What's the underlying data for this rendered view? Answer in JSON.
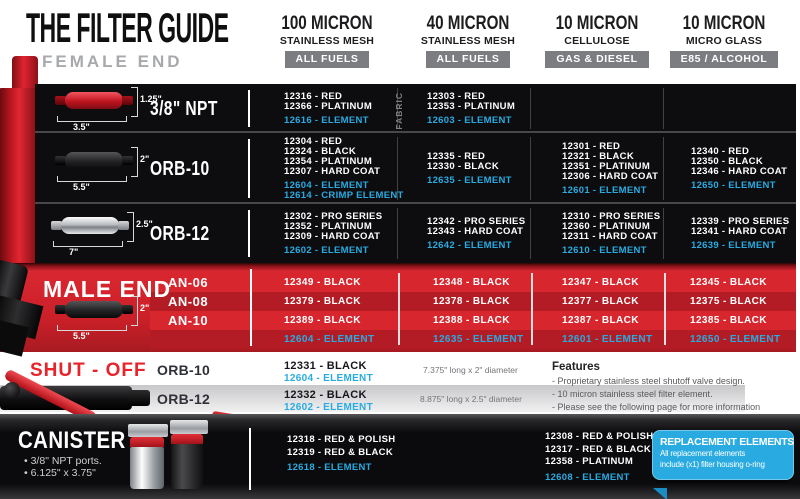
{
  "colors": {
    "element_blue": "#29ABE2",
    "brand_red": "#C8202A",
    "badge_gray": "#7B7D80"
  },
  "title": "THE FILTER GUIDE",
  "sections": {
    "female": "FEMALE END"
  },
  "columns": [
    {
      "micron": "100 MICRON",
      "media": "STAINLESS MESH",
      "fuel": "ALL FUELS"
    },
    {
      "micron": "40 MICRON",
      "media": "STAINLESS MESH",
      "fuel": "ALL FUELS"
    },
    {
      "micron": "10 MICRON",
      "media": "CELLULOSE",
      "fuel": "GAS & DIESEL"
    },
    {
      "micron": "10 MICRON",
      "media": "MICRO GLASS",
      "fuel": "E85 / ALCOHOL"
    }
  ],
  "female_rows": [
    {
      "label": "3/8\" NPT",
      "dims": {
        "h": "1.25\"",
        "w": "3.5\""
      },
      "fabric_note": "FABRIC",
      "cells": [
        {
          "parts": [
            "12316 - RED",
            "12366 - PLATINUM"
          ],
          "elements": [
            "12616 - ELEMENT"
          ]
        },
        {
          "parts": [
            "12303 - RED",
            "12353 - PLATINUM"
          ],
          "elements": [
            "12603 - ELEMENT"
          ]
        },
        {
          "parts": [],
          "elements": []
        },
        {
          "parts": [],
          "elements": []
        }
      ]
    },
    {
      "label": "ORB-10",
      "dims": {
        "h": "2\"",
        "w": "5.5\""
      },
      "cells": [
        {
          "parts": [
            "12304 - RED",
            "12324 - BLACK",
            "12354 - PLATINUM",
            "12307 - HARD COAT"
          ],
          "elements": [
            "12604 - ELEMENT",
            "12614 - CRIMP ELEMENT"
          ]
        },
        {
          "parts": [
            "12335 - RED",
            "12330 - BLACK"
          ],
          "elements": [
            "12635 - ELEMENT"
          ]
        },
        {
          "parts": [
            "12301 - RED",
            "12321 - BLACK",
            "12351 - PLATINUM",
            "12306 - HARD COAT"
          ],
          "elements": [
            "12601 - ELEMENT"
          ]
        },
        {
          "parts": [
            "12340 - RED",
            "12350 - BLACK",
            "12346 - HARD COAT"
          ],
          "elements": [
            "12650 - ELEMENT"
          ]
        }
      ]
    },
    {
      "label": "ORB-12",
      "dims": {
        "h": "2.5\"",
        "w": "7\""
      },
      "cells": [
        {
          "parts": [
            "12302 - PRO SERIES",
            "12352 - PLATINUM",
            "12309 - HARD COAT"
          ],
          "elements": [
            "12602 - ELEMENT"
          ]
        },
        {
          "parts": [
            "12342 - PRO SERIES",
            "12343 - HARD COAT"
          ],
          "elements": [
            "12642 - ELEMENT"
          ]
        },
        {
          "parts": [
            "12310 - PRO SERIES",
            "12360 - PLATINUM",
            "12311 - HARD COAT"
          ],
          "elements": [
            "12610 - ELEMENT"
          ]
        },
        {
          "parts": [
            "12339 - PRO SERIES",
            "12341 - HARD COAT"
          ],
          "elements": [
            "12639 - ELEMENT"
          ]
        }
      ]
    }
  ],
  "male": {
    "label": "MALE END",
    "dims": {
      "h": "2\"",
      "w": "5.5\""
    },
    "an_labels": [
      "AN-06",
      "AN-08",
      "AN-10"
    ],
    "cells": [
      {
        "parts": [
          "12349 - BLACK",
          "12379 - BLACK",
          "12389 - BLACK"
        ],
        "element": "12604 - ELEMENT"
      },
      {
        "parts": [
          "12348 - BLACK",
          "12378 - BLACK",
          "12388 - BLACK"
        ],
        "element": "12635 - ELEMENT"
      },
      {
        "parts": [
          "12347 - BLACK",
          "12377 - BLACK",
          "12387 - BLACK"
        ],
        "element": "12601 - ELEMENT"
      },
      {
        "parts": [
          "12345 - BLACK",
          "12375 - BLACK",
          "12385 - BLACK"
        ],
        "element": "12650 - ELEMENT"
      }
    ]
  },
  "shutoff": {
    "label": "SHUT - OFF",
    "rows": [
      {
        "label": "ORB-10",
        "part": "12331 - BLACK",
        "element": "12604 - ELEMENT",
        "note": "7.375\" long x 2\" diameter"
      },
      {
        "label": "ORB-12",
        "part": "12332 - BLACK",
        "element": "12602 - ELEMENT",
        "note": "8.875\" long x 2.5\" diameter"
      }
    ],
    "features": {
      "heading": "Features",
      "items": [
        "- Proprietary stainless steel shutoff valve design.",
        "- 10 micron stainless steel filter element.",
        "- Please see the following page for more information"
      ]
    }
  },
  "canister": {
    "label": "CANISTER",
    "bullets": [
      "• 3/8\" NPT ports.",
      "• 6.125\" x 3.75\""
    ],
    "cells": [
      {
        "parts": [
          "12318 - RED & POLISH",
          "12319 - RED & BLACK"
        ],
        "element": "12618 - ELEMENT"
      },
      {
        "parts": [
          "12308 - RED & POLISH",
          "12317 - RED & BLACK",
          "12358 - PLATINUM"
        ],
        "element": "12608 - ELEMENT"
      }
    ],
    "callout": {
      "heading": "REPLACEMENT ELEMENTS",
      "body_lines": [
        "All replacement elements",
        "include (x1) filter housing o-ring"
      ]
    }
  }
}
